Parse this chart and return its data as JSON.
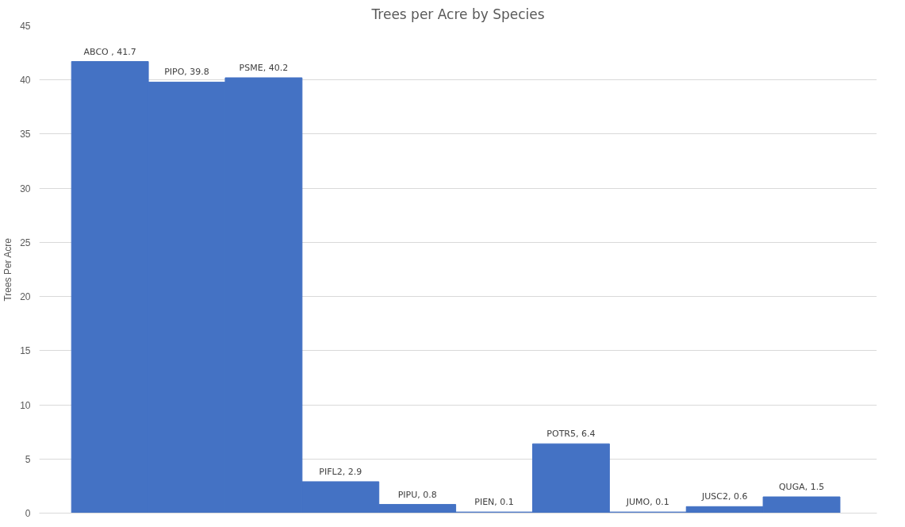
{
  "chart_data": {
    "type": "bar",
    "title": "Trees per Acre by Species",
    "ylabel": "Trees Per Acre",
    "categories": [
      null,
      null,
      null,
      null,
      null,
      null,
      null,
      null,
      null,
      null
    ],
    "values": [
      41.7,
      39.8,
      40.2,
      2.9,
      0.8,
      0.1,
      6.4,
      0.1,
      0.6,
      1.5
    ],
    "value_labels": [
      "ABCO , 41.7",
      "PIPO, 39.8",
      "PSME, 40.2",
      "PIFL2, 2.9",
      "PIPU, 0.8",
      "PIEN, 0.1",
      "POTR5, 6.4",
      "JUMO, 0.1",
      "JUSC2, 0.6",
      "QUGA, 1.5"
    ],
    "color": "#4472c4",
    "ylim": [
      0,
      45
    ],
    "yticks": [
      0,
      5,
      10,
      15,
      20,
      25,
      30,
      35,
      40,
      45
    ],
    "grid": "y"
  }
}
